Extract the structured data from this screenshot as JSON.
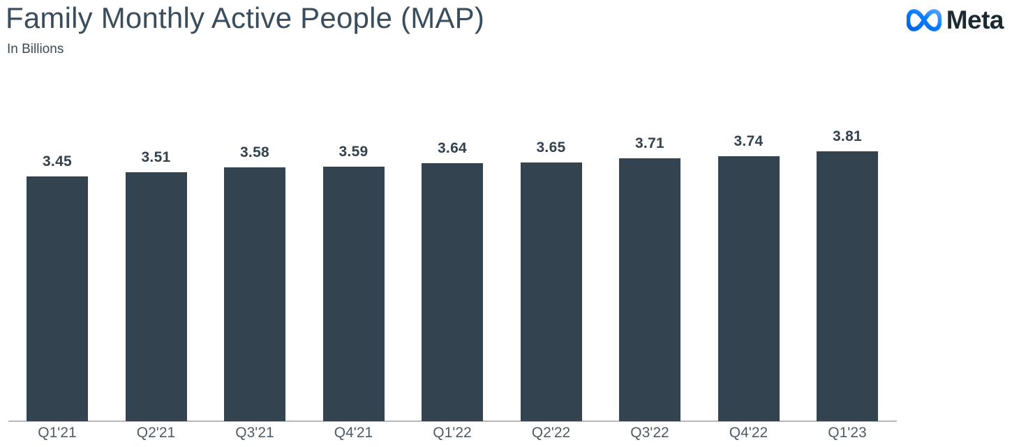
{
  "header": {
    "title": "Family Monthly Active People (MAP)",
    "subtitle": "In Billions",
    "logo_text": "Meta"
  },
  "icons": {
    "meta_infinity_icon": "infinity-loop"
  },
  "colors": {
    "bar_fill": "#334450",
    "title_text": "#3a4d5c",
    "value_label_text": "#33424e",
    "axis_label_text": "#4e5b66",
    "axis_line": "#b3b8bc",
    "logo_wordmark": "#1c2b33",
    "logo_gradient_start": "#0064E0",
    "logo_gradient_mid": "#0C7DFF",
    "logo_gradient_end": "#55A1FF"
  },
  "chart_data": {
    "type": "bar",
    "title": "Family Monthly Active People (MAP)",
    "subtitle": "In Billions",
    "categories": [
      "Q1'21",
      "Q2'21",
      "Q3'21",
      "Q4'21",
      "Q1'22",
      "Q2'22",
      "Q3'22",
      "Q4'22",
      "Q1'23"
    ],
    "values": [
      3.45,
      3.51,
      3.58,
      3.59,
      3.64,
      3.65,
      3.71,
      3.74,
      3.81
    ],
    "value_labels": [
      "3.45",
      "3.51",
      "3.58",
      "3.59",
      "3.64",
      "3.65",
      "3.71",
      "3.74",
      "3.81"
    ],
    "unit": "Billions",
    "ylim": [
      0,
      3.81
    ],
    "grid": false,
    "legend": false,
    "y_axis_visible": false,
    "x_axis_line": true
  }
}
